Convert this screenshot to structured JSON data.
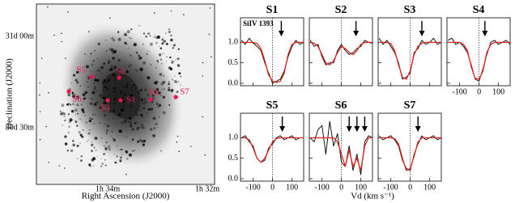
{
  "galaxy_image": {
    "ylabel": "Declination (J2000)",
    "xlabel": "Right Ascension (J2000)",
    "yticklabels": [
      "31d 00m",
      "30d 30m"
    ],
    "xticklabels": [
      "1h 34m",
      "1h 32m"
    ],
    "sightlines": [
      "S1",
      "S2",
      "S3",
      "S4",
      "S5",
      "S6",
      "S7"
    ],
    "marker_color": "#e8174d"
  },
  "xlabel": "Vd (km s⁻¹)",
  "chart_data": [
    {
      "type": "line",
      "title": "S1",
      "annotation": "SiIV 1393",
      "arrow_x": [
        45
      ],
      "x": [
        -160,
        -140,
        -120,
        -100,
        -80,
        -60,
        -40,
        -20,
        0,
        20,
        40,
        60,
        80,
        100,
        120,
        140,
        160
      ],
      "series": [
        {
          "color": "#000000",
          "values": [
            1.05,
            0.95,
            1.1,
            0.98,
            0.9,
            0.8,
            0.5,
            0.25,
            0.0,
            0.05,
            0.1,
            0.3,
            0.65,
            0.9,
            1.05,
            0.95,
            1.0
          ]
        },
        {
          "color": "#e0201b",
          "values": [
            1,
            1,
            1,
            1,
            0.97,
            0.85,
            0.55,
            0.2,
            0.05,
            0.02,
            0.05,
            0.25,
            0.7,
            0.95,
            1,
            1,
            1
          ]
        }
      ],
      "xlim": [
        -165,
        160
      ],
      "ylim": [
        -0.06,
        1.6
      ],
      "xticks": [
        -100,
        0,
        100
      ],
      "yticks": [
        {
          "value": 0,
          "label": "0.0"
        },
        {
          "value": 0.5,
          "label": "0.5"
        },
        {
          "value": 1,
          "label": "1.0"
        }
      ]
    },
    {
      "type": "line",
      "title": "S2",
      "arrow_x": [
        75
      ],
      "x": [
        -160,
        -140,
        -120,
        -100,
        -80,
        -60,
        -40,
        -20,
        0,
        20,
        40,
        60,
        80,
        100,
        120,
        140,
        160
      ],
      "series": [
        {
          "color": "#000000",
          "values": [
            1.05,
            0.9,
            0.95,
            0.65,
            0.45,
            0.5,
            0.5,
            0.8,
            0.95,
            0.8,
            0.7,
            0.75,
            0.85,
            0.9,
            1.05,
            1,
            0.98
          ]
        },
        {
          "color": "#e0201b",
          "values": [
            1,
            0.98,
            0.9,
            0.7,
            0.5,
            0.45,
            0.55,
            0.75,
            0.9,
            0.85,
            0.75,
            0.7,
            0.8,
            0.95,
            1,
            1,
            1
          ]
        }
      ],
      "xlim": [
        -165,
        160
      ],
      "ylim": [
        -0.06,
        1.6
      ],
      "xticks": [
        -100,
        0,
        100
      ],
      "yticks": [
        0,
        0.5,
        1
      ]
    },
    {
      "type": "line",
      "title": "S3",
      "arrow_x": [
        60
      ],
      "x": [
        -160,
        -140,
        -120,
        -100,
        -80,
        -60,
        -40,
        -20,
        0,
        20,
        40,
        60,
        80,
        100,
        120,
        140,
        160
      ],
      "series": [
        {
          "color": "#000000",
          "values": [
            1.1,
            0.95,
            1.05,
            0.9,
            0.75,
            0.5,
            0.1,
            0.15,
            0.25,
            0.75,
            0.85,
            1.05,
            0.95,
            1.0,
            1.1,
            0.95,
            1.0
          ]
        },
        {
          "color": "#e0201b",
          "values": [
            1,
            1,
            1,
            0.97,
            0.8,
            0.45,
            0.15,
            0.1,
            0.3,
            0.7,
            0.9,
            0.98,
            1,
            1,
            1,
            1,
            1
          ]
        }
      ],
      "xlim": [
        -165,
        160
      ],
      "ylim": [
        -0.06,
        1.6
      ],
      "xticks": [
        -100,
        0,
        100
      ],
      "yticks": [
        0,
        0.5,
        1
      ]
    },
    {
      "type": "line",
      "title": "S4",
      "arrow_x": [
        30
      ],
      "x": [
        -160,
        -140,
        -120,
        -100,
        -80,
        -60,
        -40,
        -20,
        0,
        20,
        40,
        60,
        80,
        100,
        120,
        140,
        160
      ],
      "series": [
        {
          "color": "#000000",
          "values": [
            1.05,
            1.1,
            0.95,
            1.0,
            0.9,
            0.75,
            0.45,
            0.1,
            0.05,
            0.35,
            0.7,
            1.0,
            1.05,
            0.95,
            1.0,
            1.05,
            0.95
          ]
        },
        {
          "color": "#e0201b",
          "values": [
            1,
            1,
            1,
            1,
            0.95,
            0.8,
            0.4,
            0.12,
            0.1,
            0.3,
            0.75,
            0.95,
            1,
            1,
            1,
            1,
            1
          ]
        }
      ],
      "xlim": [
        -165,
        160
      ],
      "ylim": [
        -0.06,
        1.6
      ],
      "xticks": [
        -100,
        0,
        100
      ],
      "yticks": [
        0,
        0.5,
        1
      ]
    },
    {
      "type": "line",
      "title": "S5",
      "arrow_x": [
        50
      ],
      "x": [
        -160,
        -140,
        -120,
        -100,
        -80,
        -60,
        -40,
        -20,
        0,
        20,
        40,
        60,
        80,
        100,
        120,
        140,
        160
      ],
      "series": [
        {
          "color": "#000000",
          "values": [
            1.0,
            1.05,
            0.9,
            0.8,
            0.5,
            0.4,
            0.45,
            0.75,
            0.85,
            1.0,
            1.05,
            0.95,
            1.0,
            1.05,
            0.95,
            1.0,
            1.0
          ]
        },
        {
          "color": "#e0201b",
          "values": [
            1,
            1,
            0.95,
            0.75,
            0.5,
            0.4,
            0.5,
            0.7,
            0.9,
            0.98,
            1,
            1,
            1,
            1,
            1,
            1,
            1
          ]
        }
      ],
      "xlim": [
        -165,
        160
      ],
      "ylim": [
        -0.06,
        1.6
      ],
      "xticks": [
        -100,
        0,
        100
      ],
      "yticks": [
        {
          "value": 0,
          "label": "0.0"
        },
        {
          "value": 0.5,
          "label": "0.5"
        },
        {
          "value": 1,
          "label": "1.0"
        }
      ]
    },
    {
      "type": "line",
      "title": "S6",
      "arrow_x": [
        40,
        80,
        120
      ],
      "x": [
        -160,
        -140,
        -120,
        -100,
        -80,
        -60,
        -40,
        -20,
        0,
        20,
        40,
        60,
        80,
        100,
        120,
        140,
        160
      ],
      "series": [
        {
          "color": "#000000",
          "values": [
            1.0,
            0.9,
            1.2,
            1.3,
            0.6,
            1.4,
            0.8,
            1.1,
            0.4,
            0.3,
            0.8,
            0.2,
            0.6,
            0.1,
            0.9,
            1.05,
            1.0
          ]
        },
        {
          "color": "#e0201b",
          "values": [
            1,
            1,
            1,
            1,
            1,
            1,
            1,
            0.9,
            0.6,
            0.3,
            0.7,
            0.3,
            0.5,
            0.2,
            0.8,
            1,
            1
          ]
        }
      ],
      "xlim": [
        -165,
        160
      ],
      "ylim": [
        -0.06,
        1.6
      ],
      "xticks": [
        -100,
        0,
        100
      ],
      "yticks": [
        0,
        0.5,
        1
      ]
    },
    {
      "type": "line",
      "title": "S7",
      "arrow_x": [
        40
      ],
      "x": [
        -160,
        -140,
        -120,
        -100,
        -80,
        -60,
        -40,
        -20,
        0,
        20,
        40,
        60,
        80,
        100,
        120,
        140,
        160
      ],
      "series": [
        {
          "color": "#000000",
          "values": [
            1.05,
            0.95,
            1.0,
            1.05,
            0.95,
            0.8,
            0.45,
            0.25,
            0.2,
            0.6,
            0.85,
            1.05,
            0.95,
            1.0,
            1.05,
            0.95,
            1.0
          ]
        },
        {
          "color": "#e0201b",
          "values": [
            1,
            1,
            1,
            1,
            0.98,
            0.85,
            0.5,
            0.2,
            0.25,
            0.55,
            0.9,
            1,
            1,
            1,
            1,
            1,
            1
          ]
        }
      ],
      "xlim": [
        -165,
        160
      ],
      "ylim": [
        -0.06,
        1.6
      ],
      "xticks": [
        -100,
        0,
        100
      ],
      "yticks": [
        0,
        0.5,
        1
      ]
    }
  ]
}
